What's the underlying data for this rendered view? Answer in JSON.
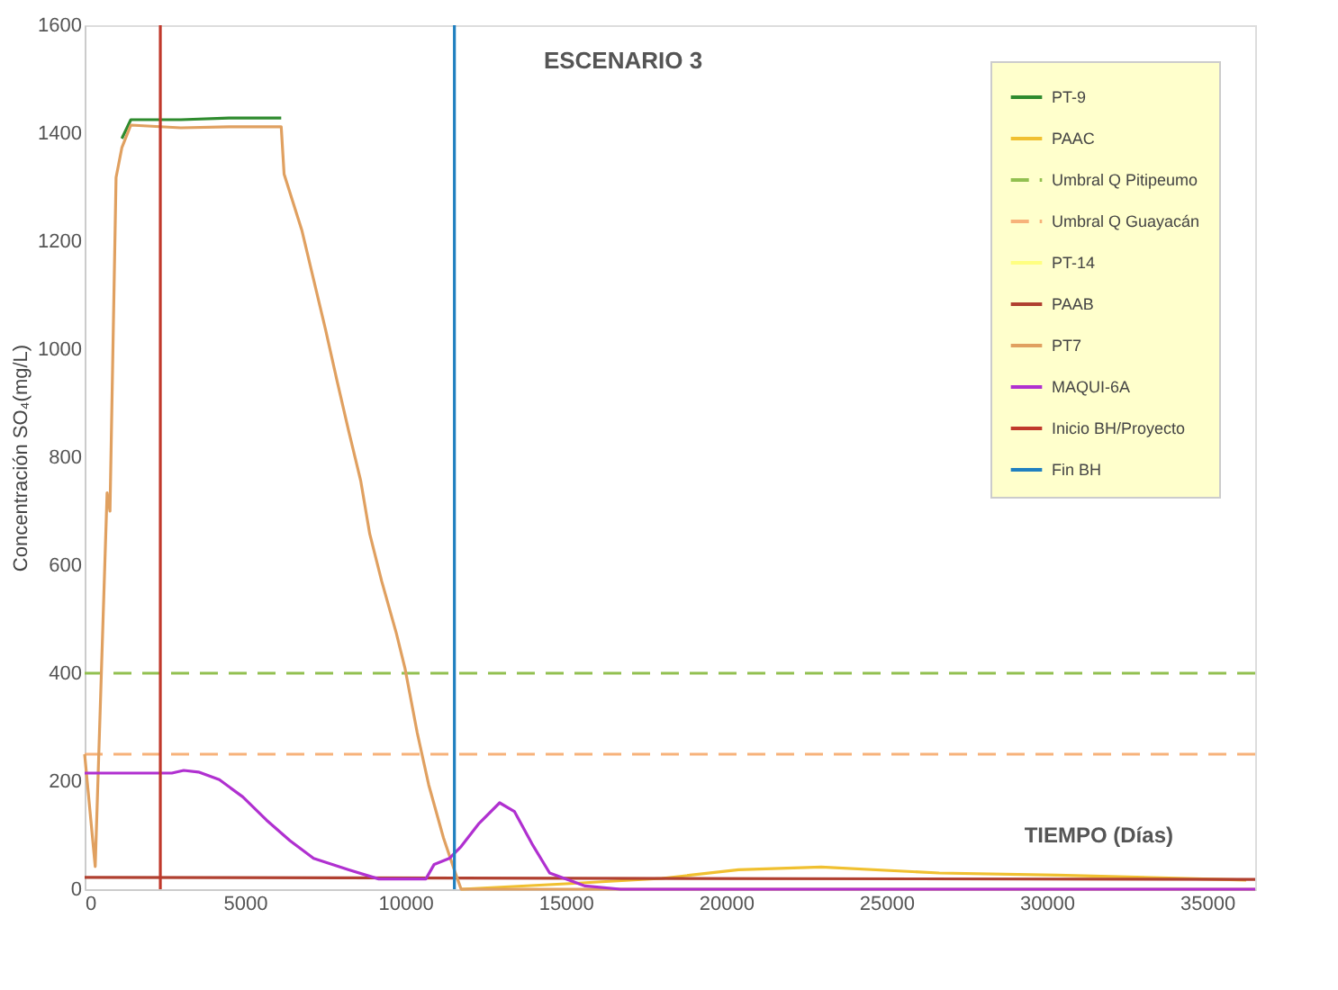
{
  "chart_data": {
    "type": "line",
    "title": "ESCENARIO 3",
    "ylabel": "Concentración SO₄(mg/L)",
    "xlabel": "TIEMPO (Días)",
    "xlim": [
      0,
      36500
    ],
    "xticks": [
      0,
      5000,
      10000,
      15000,
      20000,
      25000,
      30000,
      35000
    ],
    "ylim": [
      0,
      1600
    ],
    "yticks": [
      0,
      200,
      400,
      600,
      800,
      1000,
      1200,
      1400,
      1600
    ],
    "grid": false,
    "legend": "top right",
    "marker": "none",
    "series": [
      {
        "name": "PT-9",
        "color": "#2e8b2e",
        "line_style": "solid",
        "x": [
          1160,
          1440,
          3000,
          4500,
          6130
        ],
        "values": [
          1390,
          1425,
          1425,
          1428,
          1428
        ]
      },
      {
        "name": "PAAC",
        "color": "#f0c030",
        "line_style": "solid",
        "x": [
          11740,
          15000,
          18000,
          20390,
          22970,
          26650,
          30330,
          36220
        ],
        "values": [
          0,
          10,
          20,
          36,
          41,
          30,
          26,
          17
        ]
      },
      {
        "name": "Umbral Q Pitipeumo",
        "color": "#92c050",
        "line_style": "dashed",
        "x": [
          0,
          36500
        ],
        "values": [
          400,
          400
        ]
      },
      {
        "name": "Umbral Q Guayacán",
        "color": "#f7b27a",
        "line_style": "dashed",
        "x": [
          0,
          36500
        ],
        "values": [
          250,
          250
        ]
      },
      {
        "name": "PT-14",
        "color": "#ffff80",
        "line_style": "solid"
      },
      {
        "name": "PAAB",
        "color": "#b04030",
        "line_style": "solid",
        "x": [
          0,
          36500
        ],
        "values": [
          22,
          18
        ]
      },
      {
        "name": "PT7",
        "color": "#e0a060",
        "line_style": "solid",
        "x": [
          0,
          330,
          700,
          790,
          980,
          1160,
          1440,
          3000,
          4500,
          6130,
          6220,
          6770,
          7140,
          7510,
          7880,
          8240,
          8610,
          8890,
          9260,
          9720,
          9990,
          10370,
          10730,
          11190,
          11560,
          11740,
          36500
        ],
        "values": [
          250,
          42,
          734,
          700,
          1318,
          1373,
          1415,
          1410,
          1412,
          1412,
          1324,
          1221,
          1129,
          1037,
          939,
          847,
          756,
          658,
          571,
          474,
          409,
          290,
          193,
          95,
          30,
          0,
          0
        ]
      },
      {
        "name": "MAQUI-6A",
        "color": "#b030d0",
        "line_style": "solid",
        "x": [
          0,
          2720,
          3090,
          3550,
          4200,
          4930,
          5670,
          6400,
          7140,
          8240,
          9170,
          10640,
          10900,
          11370,
          11740,
          12300,
          12940,
          13400,
          13950,
          14500,
          15610,
          16710,
          36500
        ],
        "values": [
          215,
          215,
          220,
          217,
          203,
          171,
          128,
          90,
          57,
          36,
          19,
          19,
          46,
          57,
          79,
          122,
          160,
          144,
          84,
          30,
          6,
          0,
          0
        ]
      },
      {
        "name": "Inicio BH/Proyecto",
        "color": "#c0392b",
        "line_style": "solid",
        "x": [
          2360,
          2360
        ],
        "values": [
          0,
          1600
        ]
      },
      {
        "name": "Fin BH",
        "color": "#2080c0",
        "line_style": "solid",
        "x": [
          11530,
          11530
        ],
        "values": [
          0,
          1600
        ]
      }
    ]
  }
}
